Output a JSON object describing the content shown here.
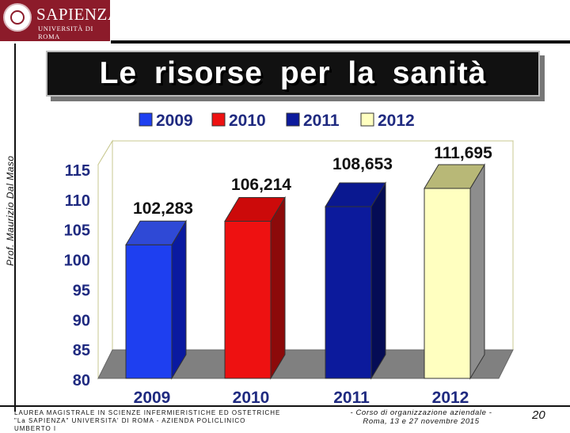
{
  "header": {
    "logo_name": "SAPIENZA",
    "logo_sub": "UNIVERSITÀ DI ROMA",
    "title": "Le risorse per la sanità",
    "author": "Prof. Maurizio Dal Maso"
  },
  "chart_data": {
    "type": "bar",
    "categories": [
      "2009",
      "2010",
      "2011",
      "2012"
    ],
    "values": [
      102.283,
      106.214,
      108.653,
      111.695
    ],
    "data_labels": [
      "102,283",
      "106,214",
      "108,653",
      "111,695"
    ],
    "legend": [
      "2009",
      "2010",
      "2011",
      "2012"
    ],
    "colors": [
      "#1e3ff0",
      "#ee1111",
      "#0c1a9c",
      "#ffffc0"
    ],
    "top_colors": [
      "#2f49d6",
      "#cc0a0a",
      "#0a1890",
      "#b8b877"
    ],
    "side_colors": [
      "#0a1aa0",
      "#8c0a0a",
      "#050c55",
      "#8d8d8d"
    ],
    "yticks": [
      "115",
      "110",
      "105",
      "100",
      "95",
      "90",
      "85",
      "80"
    ],
    "ylim": [
      80,
      115
    ],
    "legend_position": "top",
    "grid": false
  },
  "footer": {
    "course_line1": "LAUREA MAGISTRALE IN SCIENZE INFERMIERISTICHE ED OSTETRICHE",
    "course_line2": "\"La SAPIENZA\" UNIVERSITA' DI ROMA - AZIENDA POLICLINICO UMBERTO I",
    "event_line1": "- Corso di organizzazione aziendale -",
    "event_line2": "Roma, 13 e 27 novembre 2015",
    "page": "20"
  }
}
